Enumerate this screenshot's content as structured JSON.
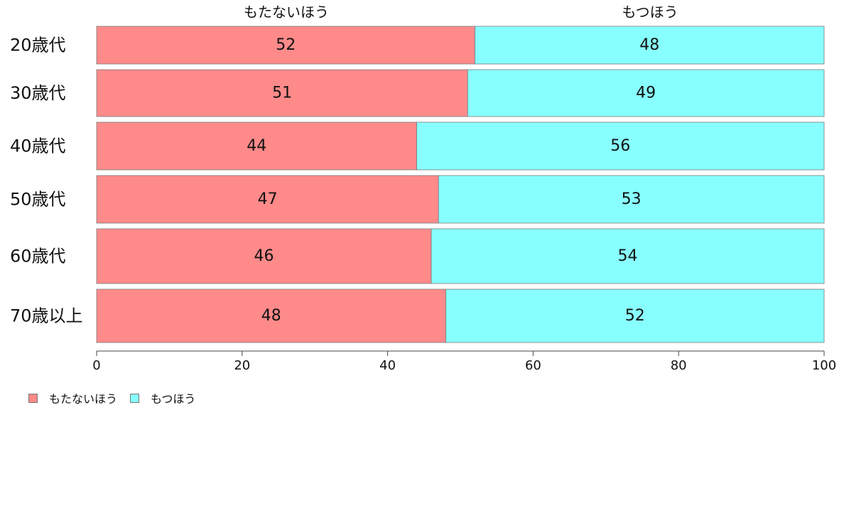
{
  "chart_data": {
    "type": "bar",
    "orientation": "horizontal",
    "stacked": true,
    "categories": [
      "20歳代",
      "30歳代",
      "40歳代",
      "50歳代",
      "60歳代",
      "70歳以上"
    ],
    "series": [
      {
        "name": "もたないほう",
        "values": [
          52,
          51,
          44,
          47,
          46,
          48
        ],
        "color": "#FF8A8A"
      },
      {
        "name": "もつほう",
        "values": [
          48,
          49,
          56,
          53,
          54,
          52
        ],
        "color": "#88FFFF"
      }
    ],
    "segment_labels": [
      [
        "52",
        "51",
        "44",
        "47",
        "46",
        "48"
      ],
      [
        "48",
        "49",
        "56",
        "53",
        "54",
        "52"
      ]
    ],
    "top_headers": [
      "もたないほう",
      "もつほう"
    ],
    "x_ticks": [
      "0",
      "20",
      "40",
      "60",
      "80",
      "100"
    ],
    "xlim": [
      0,
      100
    ],
    "legend_position": "bottom-left",
    "grid": false,
    "title": "",
    "xlabel": "",
    "ylabel": ""
  }
}
